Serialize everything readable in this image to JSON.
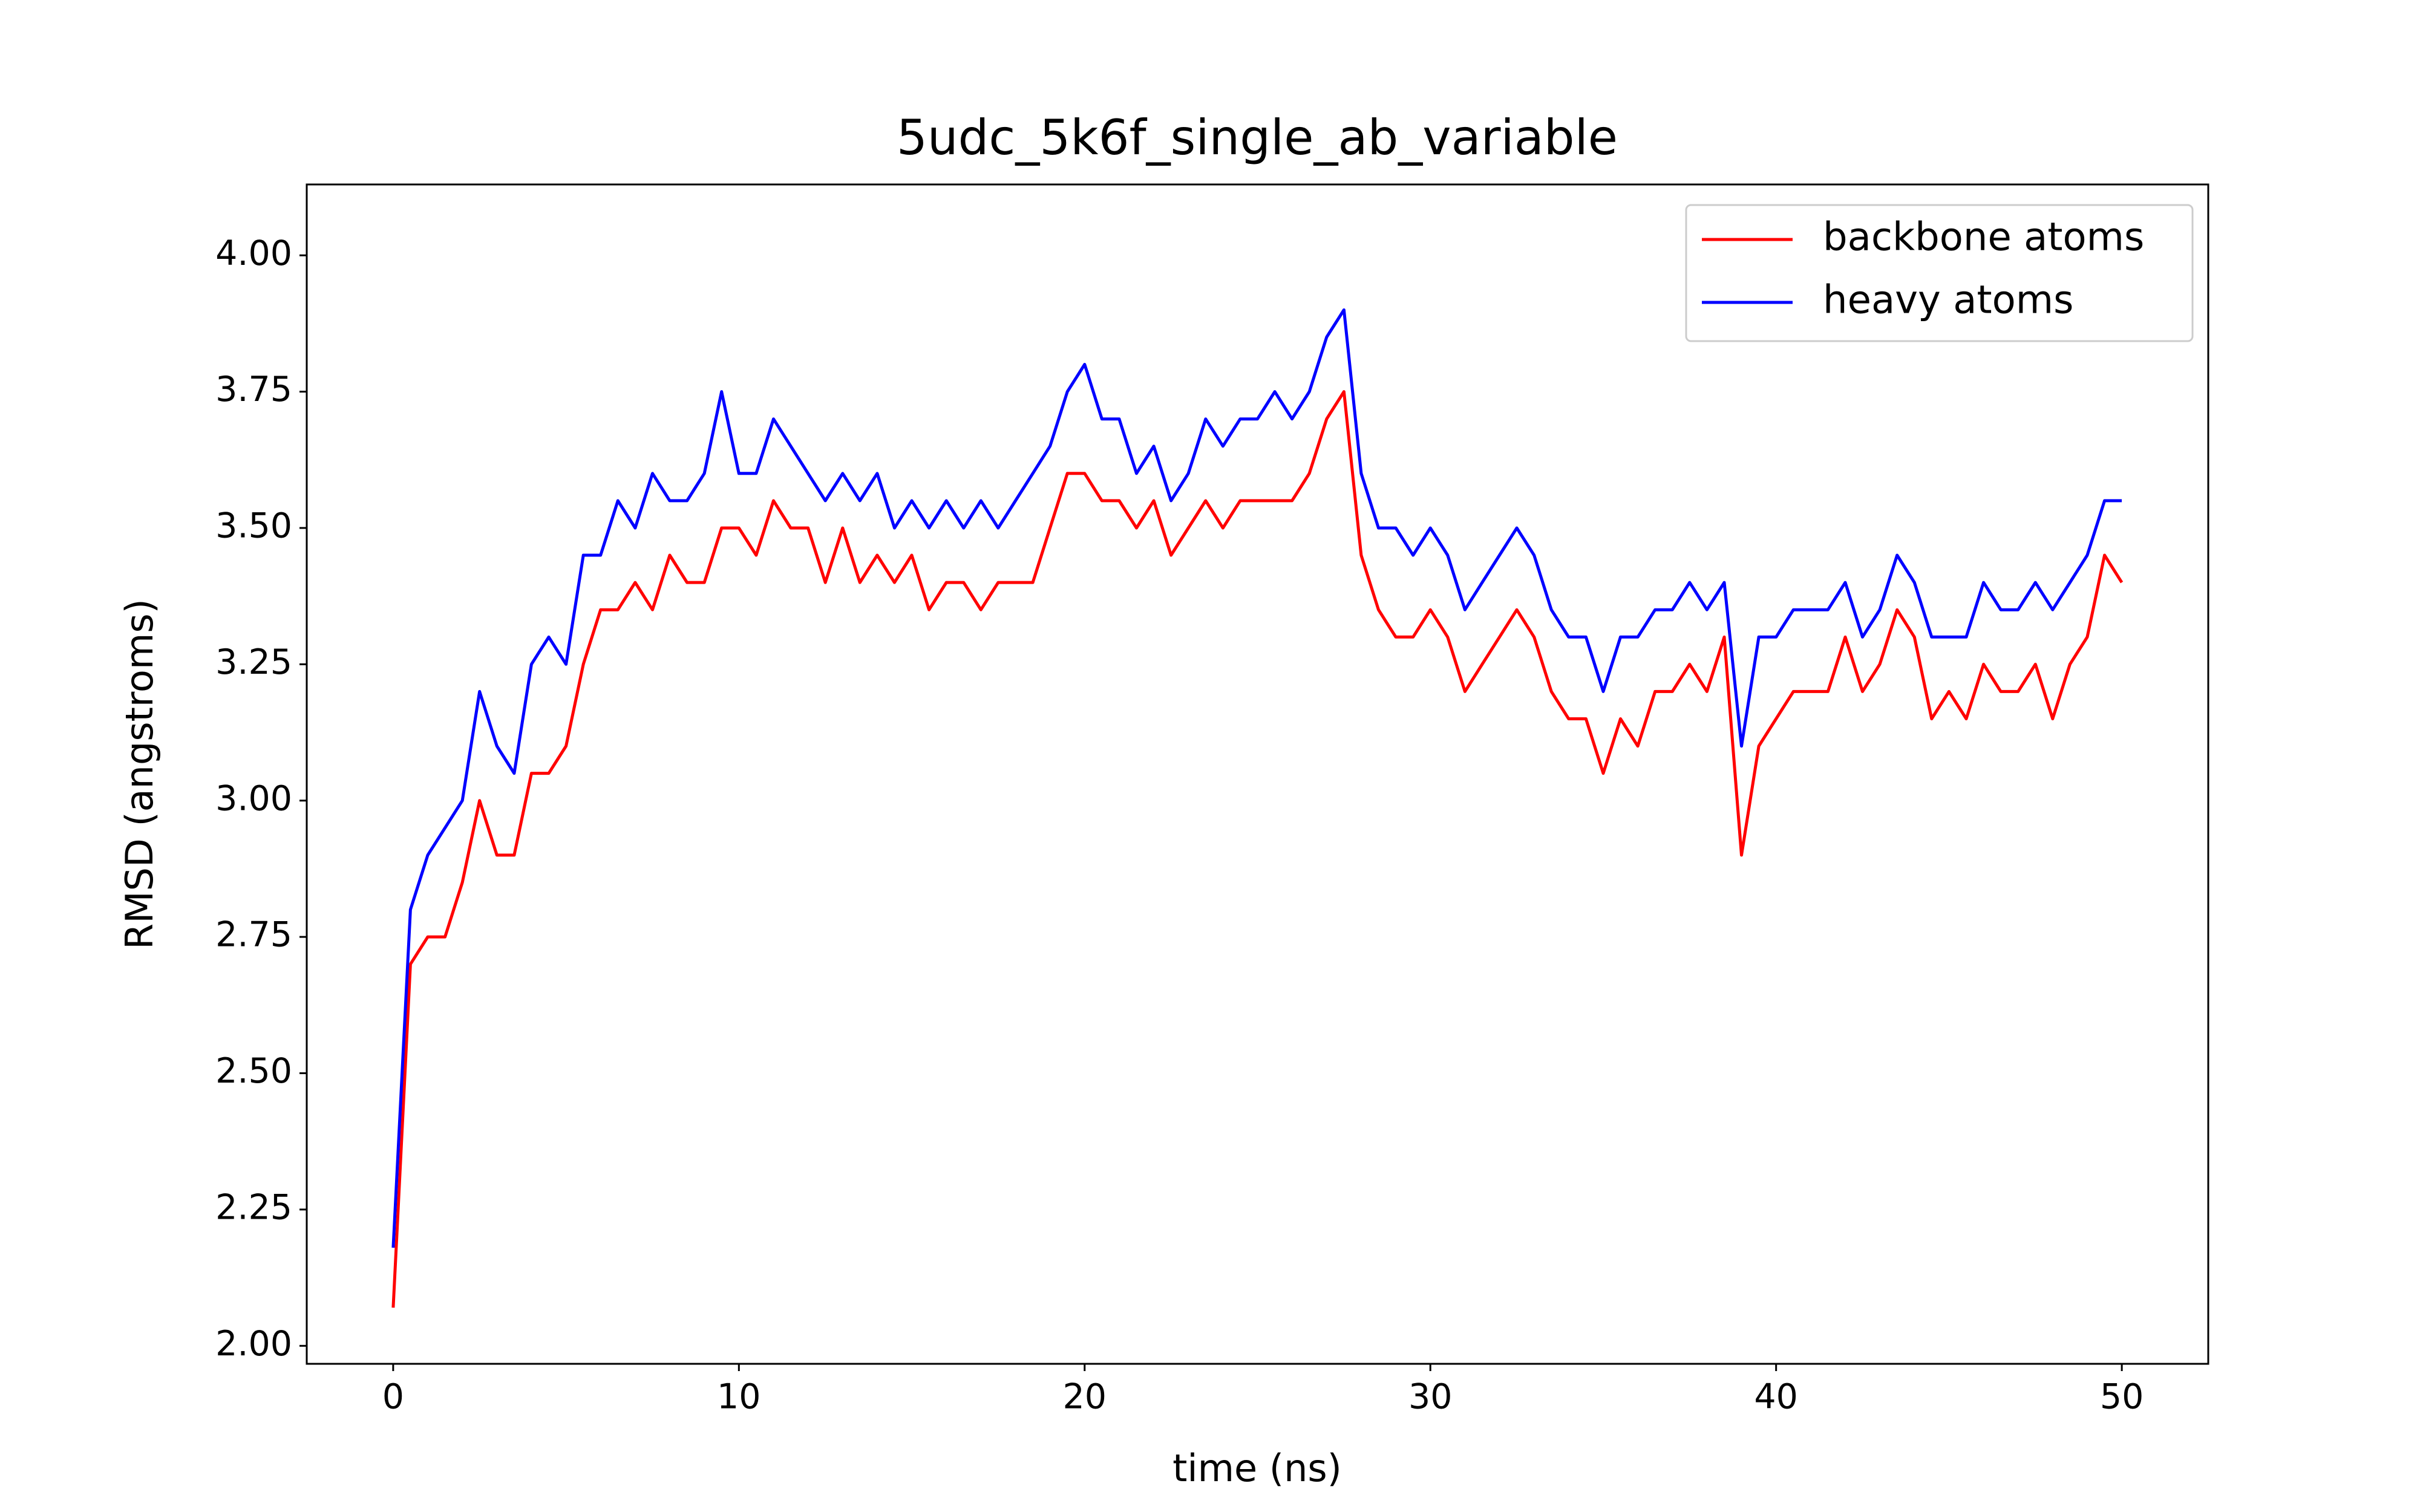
{
  "chart_data": {
    "type": "line",
    "title": "5udc_5k6f_single_ab_variable",
    "x_label": "time (ns)",
    "y_label": "RMSD (angstroms)",
    "x": [
      0,
      0.5,
      1,
      1.5,
      2,
      2.5,
      3,
      3.5,
      4,
      4.5,
      5,
      5.5,
      6,
      6.5,
      7,
      7.5,
      8,
      8.5,
      9,
      9.5,
      10,
      10.5,
      11,
      11.5,
      12,
      12.5,
      13,
      13.5,
      14,
      14.5,
      15,
      15.5,
      16,
      16.5,
      17,
      17.5,
      18,
      18.5,
      19,
      19.5,
      20,
      20.5,
      21,
      21.5,
      22,
      22.5,
      23,
      23.5,
      24,
      24.5,
      25,
      25.5,
      26,
      26.5,
      27,
      27.5,
      28,
      28.5,
      29,
      29.5,
      30,
      30.5,
      31,
      31.5,
      32,
      32.5,
      33,
      33.5,
      34,
      34.5,
      35,
      35.5,
      36,
      36.5,
      37,
      37.5,
      38,
      38.5,
      39,
      39.5,
      40,
      40.5,
      41,
      41.5,
      42,
      42.5,
      43,
      43.5,
      44,
      44.5,
      45,
      45.5,
      46,
      46.5,
      47,
      47.5,
      48,
      48.5,
      49,
      49.5,
      50
    ],
    "series": [
      {
        "name": "backbone atoms",
        "color": "#ff0000",
        "values": [
          2.07,
          2.7,
          2.75,
          2.75,
          2.85,
          3.0,
          2.9,
          2.9,
          3.05,
          3.05,
          3.1,
          3.25,
          3.35,
          3.35,
          3.4,
          3.35,
          3.45,
          3.4,
          3.4,
          3.5,
          3.5,
          3.45,
          3.55,
          3.5,
          3.5,
          3.4,
          3.5,
          3.4,
          3.45,
          3.4,
          3.45,
          3.35,
          3.4,
          3.4,
          3.35,
          3.4,
          3.4,
          3.4,
          3.5,
          3.6,
          3.6,
          3.55,
          3.55,
          3.5,
          3.55,
          3.45,
          3.5,
          3.55,
          3.5,
          3.55,
          3.55,
          3.55,
          3.55,
          3.6,
          3.7,
          3.75,
          3.45,
          3.35,
          3.3,
          3.3,
          3.35,
          3.3,
          3.2,
          3.25,
          3.3,
          3.35,
          3.3,
          3.2,
          3.15,
          3.15,
          3.05,
          3.15,
          3.1,
          3.2,
          3.2,
          3.25,
          3.2,
          3.3,
          2.9,
          3.1,
          3.15,
          3.2,
          3.2,
          3.2,
          3.3,
          3.2,
          3.25,
          3.35,
          3.3,
          3.15,
          3.2,
          3.15,
          3.25,
          3.2,
          3.2,
          3.25,
          3.15,
          3.25,
          3.3,
          3.45,
          3.4
        ]
      },
      {
        "name": "heavy atoms",
        "color": "#0000ff",
        "values": [
          2.18,
          2.8,
          2.9,
          2.95,
          3.0,
          3.2,
          3.1,
          3.05,
          3.25,
          3.3,
          3.25,
          3.45,
          3.45,
          3.55,
          3.5,
          3.6,
          3.55,
          3.55,
          3.6,
          3.75,
          3.6,
          3.6,
          3.7,
          3.65,
          3.6,
          3.55,
          3.6,
          3.55,
          3.6,
          3.5,
          3.55,
          3.5,
          3.55,
          3.5,
          3.55,
          3.5,
          3.55,
          3.6,
          3.65,
          3.75,
          3.8,
          3.7,
          3.7,
          3.6,
          3.65,
          3.55,
          3.6,
          3.7,
          3.65,
          3.7,
          3.7,
          3.75,
          3.7,
          3.75,
          3.85,
          3.9,
          3.6,
          3.5,
          3.5,
          3.45,
          3.5,
          3.45,
          3.35,
          3.4,
          3.45,
          3.5,
          3.45,
          3.35,
          3.3,
          3.3,
          3.2,
          3.3,
          3.3,
          3.35,
          3.35,
          3.4,
          3.35,
          3.4,
          3.1,
          3.3,
          3.3,
          3.35,
          3.35,
          3.35,
          3.4,
          3.3,
          3.35,
          3.45,
          3.4,
          3.3,
          3.3,
          3.3,
          3.4,
          3.35,
          3.35,
          3.4,
          3.35,
          3.4,
          3.45,
          3.55,
          3.55
        ]
      }
    ],
    "xlim": [
      -2.5,
      52.5
    ],
    "ylim": [
      1.967,
      4.13
    ],
    "xticks": [
      0,
      10,
      20,
      30,
      40,
      50
    ],
    "yticks": [
      {
        "value": 2,
        "label": "2.00"
      },
      {
        "value": 2.25,
        "label": "2.25"
      },
      {
        "value": 2.5,
        "label": "2.50"
      },
      {
        "value": 2.75,
        "label": "2.75"
      },
      {
        "value": 3,
        "label": "3.00"
      },
      {
        "value": 3.25,
        "label": "3.25"
      },
      {
        "value": 3.5,
        "label": "3.50"
      },
      {
        "value": 3.75,
        "label": "3.75"
      },
      {
        "value": 4,
        "label": "4.00"
      }
    ],
    "legend": "upper right",
    "grid": false
  }
}
